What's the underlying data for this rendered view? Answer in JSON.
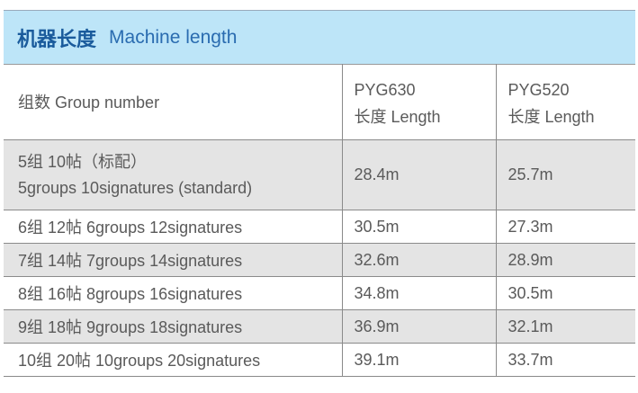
{
  "title": {
    "cn": "机器长度",
    "en": "Machine length"
  },
  "header": {
    "group": "组数  Group number",
    "col1_model": "PYG630",
    "col1_label": "长度  Length",
    "col2_model": "PYG520",
    "col2_label": "长度  Length"
  },
  "rows": [
    {
      "group_cn": "5组 10帖（标配）",
      "group_en": "5groups 10signatures (standard)",
      "pyg630": "28.4m",
      "pyg520": "25.7m"
    },
    {
      "group": "6组 12帖 6groups 12signatures",
      "pyg630": "30.5m",
      "pyg520": "27.3m"
    },
    {
      "group": "7组 14帖 7groups 14signatures",
      "pyg630": "32.6m",
      "pyg520": "28.9m"
    },
    {
      "group": "8组 16帖 8groups 16signatures",
      "pyg630": "34.8m",
      "pyg520": "30.5m"
    },
    {
      "group": "9组 18帖 9groups 18signatures",
      "pyg630": "36.9m",
      "pyg520": "32.1m"
    },
    {
      "group": "10组 20帖 10groups 20signatures",
      "pyg630": "39.1m",
      "pyg520": "33.7m"
    }
  ],
  "colors": {
    "title_band": "#bde5f8",
    "title_text": "#1a5b9c",
    "stripe": "#e4e4e4"
  }
}
